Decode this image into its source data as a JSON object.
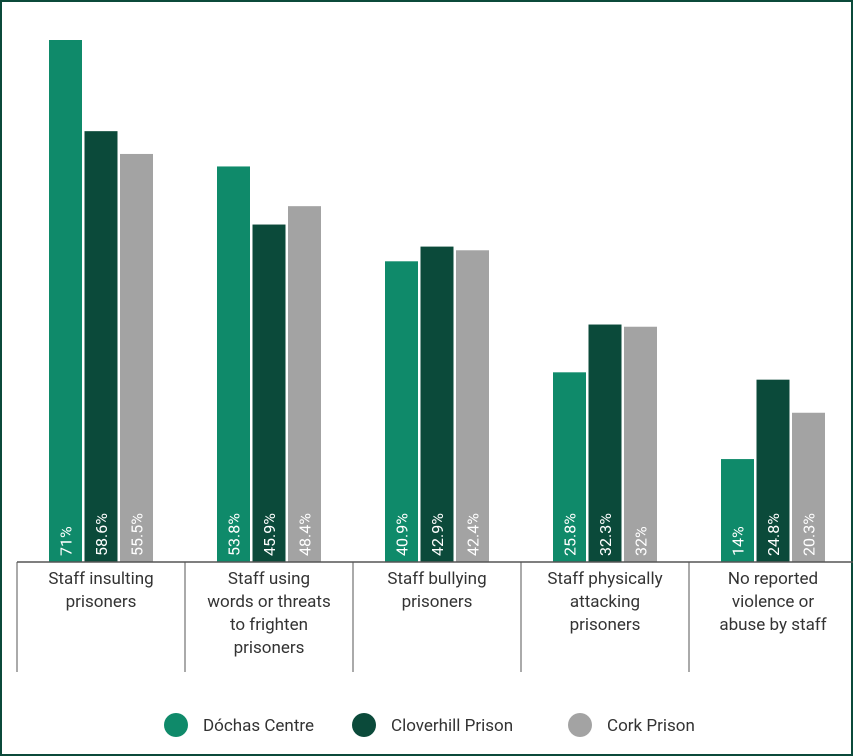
{
  "chart_data": {
    "type": "bar",
    "categories": [
      "Staff insulting\nprisoners",
      "Staff using\nwords or threats\nto frighten\nprisoners",
      "Staff bullying\nprisoners",
      "Staff physically\nattacking\nprisoners",
      "No reported\nviolence or\nabuse by staff"
    ],
    "series": [
      {
        "name": "Dóchas Centre",
        "color": "#0f8a6a",
        "values": [
          71,
          53.8,
          40.9,
          25.8,
          14
        ],
        "value_labels": [
          "71%",
          "53.8%",
          "40.9%",
          "25.8%",
          "14%"
        ]
      },
      {
        "name": "Cloverhill Prison",
        "color": "#0b4a3a",
        "values": [
          58.6,
          45.9,
          42.9,
          32.3,
          24.8
        ],
        "value_labels": [
          "58.6%",
          "45.9%",
          "42.9%",
          "32.3%",
          "24.8%"
        ]
      },
      {
        "name": "Cork Prison",
        "color": "#a3a3a3",
        "values": [
          55.5,
          48.4,
          42.4,
          32,
          20.3
        ],
        "value_labels": [
          "55.5%",
          "48.4%",
          "42.4%",
          "32%",
          "20.3%"
        ]
      }
    ],
    "legend": "bottom"
  }
}
